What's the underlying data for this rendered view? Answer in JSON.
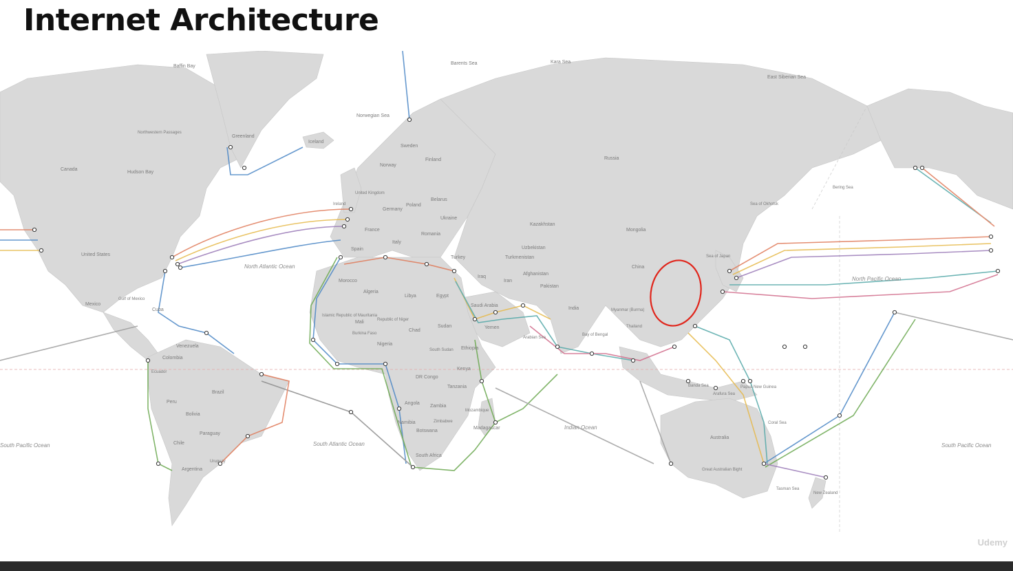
{
  "slide": {
    "title": "Internet Architecture"
  },
  "map": {
    "land_color": "#d9d9d9",
    "cable_colors": [
      "#e07b5a",
      "#6aa84f",
      "#4a86c5",
      "#e6b94a",
      "#9b7bb8",
      "#8e8e8e",
      "#d16b8a",
      "#53a8a8"
    ],
    "highlight": {
      "label": "china-coast-circle",
      "color": "#e0251b"
    },
    "labels": {
      "baffin_bay": "Baffin Bay",
      "barents_sea": "Barents Sea",
      "kara_sea": "Kara Sea",
      "east_siberian_sea": "East Siberian Sea",
      "greenland": "Greenland",
      "iceland": "Iceland",
      "norwegian_sea": "Norwegian Sea",
      "sweden": "Sweden",
      "finland": "Finland",
      "norway": "Norway",
      "russia": "Russia",
      "canada": "Canada",
      "hudson_bay": "Hudson Bay",
      "northwestern_passages": "Northwestern Passages",
      "united_states": "United States",
      "mexico": "Mexico",
      "gulf_of_mexico": "Gulf of Mexico",
      "cuba": "Cuba",
      "venezuela": "Venezuela",
      "colombia": "Colombia",
      "ecuador": "Ecuador",
      "peru": "Peru",
      "brazil": "Brazil",
      "bolivia": "Bolivia",
      "paraguay": "Paraguay",
      "chile": "Chile",
      "argentina": "Argentina",
      "uruguay": "Uruguay",
      "united_kingdom": "United Kingdom",
      "ireland": "Ireland",
      "france": "France",
      "spain": "Spain",
      "germany": "Germany",
      "poland": "Poland",
      "belarus": "Belarus",
      "ukraine": "Ukraine",
      "romania": "Romania",
      "italy": "Italy",
      "turkey": "Turkey",
      "morocco": "Morocco",
      "algeria": "Algeria",
      "libya": "Libya",
      "egypt": "Egypt",
      "mali": "Mali",
      "niger": "Republic of Niger",
      "mauritania": "Islamic Republic of Mauritania",
      "chad": "Chad",
      "sudan": "Sudan",
      "south_sudan": "South Sudan",
      "ethiopia": "Ethiopia",
      "nigeria": "Nigeria",
      "burkina_faso": "Burkina Faso",
      "dr_congo": "DR Congo",
      "kenya": "Kenya",
      "tanzania": "Tanzania",
      "angola": "Angola",
      "zambia": "Zambia",
      "namibia": "Namibia",
      "botswana": "Botswana",
      "zimbabwe": "Zimbabwe",
      "mozambique": "Mozambique",
      "madagascar": "Madagascar",
      "south_africa": "South Africa",
      "saudi_arabia": "Saudi Arabia",
      "yemen": "Yemen",
      "iran": "Iran",
      "iraq": "Iraq",
      "kazakhstan": "Kazakhstan",
      "uzbekistan": "Uzbekistan",
      "turkmenistan": "Turkmenistan",
      "afghanistan": "Afghanistan",
      "pakistan": "Pakistan",
      "india": "India",
      "mongolia": "Mongolia",
      "china": "China",
      "myanmar": "Myanmar (Burma)",
      "thailand": "Thailand",
      "sea_of_japan": "Sea of Japan",
      "sea_of_okhotsk": "Sea of Okhotsk",
      "bering_sea": "Bering Sea",
      "arabian_sea": "Arabian Sea",
      "bay_of_bengal": "Bay of Bengal",
      "banda_sea": "Banda Sea",
      "arafura_sea": "Arafura Sea",
      "papua_new_guinea": "Papua New Guinea",
      "coral_sea": "Coral Sea",
      "australia": "Australia",
      "great_australian_bight": "Great Australian Bight",
      "tasman_sea": "Tasman Sea",
      "new_zealand": "New Zealand",
      "north_atlantic_ocean": "North Atlantic Ocean",
      "south_atlantic_ocean": "South Atlantic Ocean",
      "indian_ocean": "Indian Ocean",
      "north_pacific_ocean": "North Pacific Ocean",
      "south_pacific_ocean": "South Pacific Ocean",
      "south_pacific_ocean_left": "South Pacific Ocean"
    }
  },
  "watermark": "Udemy"
}
